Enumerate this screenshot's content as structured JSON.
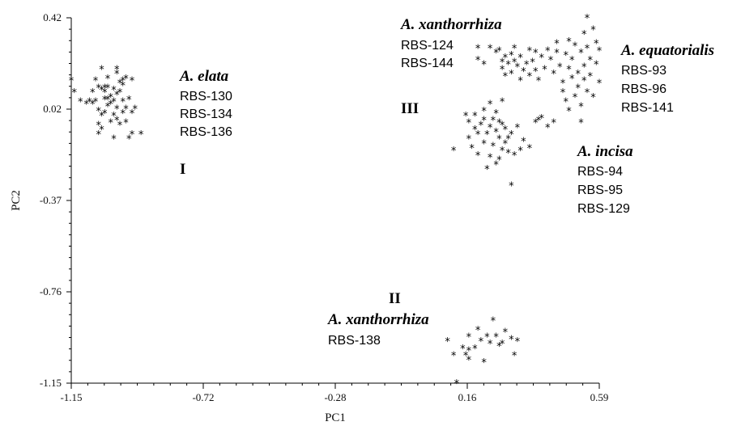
{
  "chart_data": {
    "type": "scatter",
    "xlabel": "PC1",
    "ylabel": "PC2",
    "xlim": [
      -1.15,
      0.59
    ],
    "ylim": [
      -1.15,
      0.42
    ],
    "xticks": [
      "-1.15",
      "-0.72",
      "-0.28",
      "0.16",
      "0.59"
    ],
    "yticks": [
      "0.42",
      "0.02",
      "-0.37",
      "-0.76",
      "-1.15"
    ],
    "marker": "asterisk",
    "groups": [
      {
        "label": "I",
        "species": "A. elata",
        "strains": [
          "RBS-130",
          "RBS-134",
          "RBS-136"
        ],
        "points": [
          [
            -1.15,
            0.15
          ],
          [
            -1.14,
            0.1
          ],
          [
            -1.12,
            0.06
          ],
          [
            -1.1,
            0.05
          ],
          [
            -1.09,
            0.06
          ],
          [
            -1.08,
            0.1
          ],
          [
            -1.08,
            0.05
          ],
          [
            -1.07,
            0.15
          ],
          [
            -1.07,
            0.06
          ],
          [
            -1.06,
            0.12
          ],
          [
            -1.06,
            0.02
          ],
          [
            -1.06,
            -0.04
          ],
          [
            -1.06,
            -0.08
          ],
          [
            -1.05,
            0.2
          ],
          [
            -1.05,
            0.11
          ],
          [
            -1.05,
            0.0
          ],
          [
            -1.05,
            -0.06
          ],
          [
            -1.04,
            0.1
          ],
          [
            -1.04,
            0.07
          ],
          [
            -1.04,
            0.01
          ],
          [
            -1.04,
            0.12
          ],
          [
            -1.03,
            0.16
          ],
          [
            -1.03,
            0.07
          ],
          [
            -1.03,
            0.12
          ],
          [
            -1.03,
            0.04
          ],
          [
            -1.02,
            0.08
          ],
          [
            -1.02,
            -0.03
          ],
          [
            -1.02,
            0.05
          ],
          [
            -1.01,
            0.06
          ],
          [
            -1.01,
            0.11
          ],
          [
            -1.01,
            0.0
          ],
          [
            -1.01,
            -0.1
          ],
          [
            -1.0,
            0.2
          ],
          [
            -1.0,
            0.18
          ],
          [
            -1.0,
            0.09
          ],
          [
            -1.0,
            0.03
          ],
          [
            -1.0,
            -0.02
          ],
          [
            -0.99,
            0.1
          ],
          [
            -0.99,
            -0.04
          ],
          [
            -0.99,
            0.14
          ],
          [
            -0.98,
            0.15
          ],
          [
            -0.98,
            0.06
          ],
          [
            -0.98,
            0.13
          ],
          [
            -0.98,
            0.01
          ],
          [
            -0.97,
            0.16
          ],
          [
            -0.97,
            0.03
          ],
          [
            -0.97,
            -0.03
          ],
          [
            -0.96,
            0.07
          ],
          [
            -0.96,
            -0.1
          ],
          [
            -0.95,
            0.15
          ],
          [
            -0.95,
            0.01
          ],
          [
            -0.95,
            -0.08
          ],
          [
            -0.94,
            0.03
          ],
          [
            -0.92,
            -0.08
          ]
        ]
      },
      {
        "label": "II",
        "species": "A. xanthorrhiza",
        "strains": [
          "RBS-138"
        ],
        "points": [
          [
            0.09,
            -0.97
          ],
          [
            0.11,
            -1.03
          ],
          [
            0.12,
            -1.15
          ],
          [
            0.14,
            -1.0
          ],
          [
            0.15,
            -1.03
          ],
          [
            0.16,
            -0.95
          ],
          [
            0.16,
            -1.01
          ],
          [
            0.16,
            -1.05
          ],
          [
            0.18,
            -1.0
          ],
          [
            0.19,
            -0.92
          ],
          [
            0.2,
            -0.97
          ],
          [
            0.21,
            -1.06
          ],
          [
            0.22,
            -0.95
          ],
          [
            0.23,
            -0.98
          ],
          [
            0.24,
            -0.88
          ],
          [
            0.25,
            -0.95
          ],
          [
            0.26,
            -0.99
          ],
          [
            0.27,
            -0.98
          ],
          [
            0.28,
            -0.93
          ],
          [
            0.3,
            -0.96
          ],
          [
            0.31,
            -1.03
          ],
          [
            0.32,
            -0.97
          ]
        ]
      },
      {
        "label": "III",
        "species": "A. incisa",
        "strains": [
          "RBS-94",
          "RBS-95",
          "RBS-129"
        ],
        "points": [
          [
            0.11,
            -0.15
          ],
          [
            0.15,
            0.0
          ],
          [
            0.16,
            -0.03
          ],
          [
            0.16,
            -0.1
          ],
          [
            0.17,
            -0.14
          ],
          [
            0.18,
            0.0
          ],
          [
            0.18,
            -0.06
          ],
          [
            0.19,
            -0.08
          ],
          [
            0.19,
            -0.17
          ],
          [
            0.2,
            -0.04
          ],
          [
            0.21,
            0.02
          ],
          [
            0.21,
            -0.02
          ],
          [
            0.21,
            -0.12
          ],
          [
            0.22,
            -0.08
          ],
          [
            0.22,
            -0.23
          ],
          [
            0.23,
            0.05
          ],
          [
            0.23,
            -0.05
          ],
          [
            0.23,
            -0.18
          ],
          [
            0.24,
            -0.02
          ],
          [
            0.24,
            -0.13
          ],
          [
            0.25,
            0.01
          ],
          [
            0.25,
            -0.07
          ],
          [
            0.25,
            -0.21
          ],
          [
            0.26,
            -0.03
          ],
          [
            0.26,
            -0.1
          ],
          [
            0.26,
            -0.19
          ],
          [
            0.27,
            0.06
          ],
          [
            0.27,
            -0.04
          ],
          [
            0.27,
            -0.15
          ],
          [
            0.28,
            -0.06
          ],
          [
            0.28,
            -0.12
          ],
          [
            0.29,
            -0.1
          ],
          [
            0.29,
            -0.16
          ],
          [
            0.3,
            -0.08
          ],
          [
            0.3,
            -0.3
          ],
          [
            0.31,
            -0.17
          ],
          [
            0.32,
            -0.05
          ],
          [
            0.33,
            -0.15
          ],
          [
            0.34,
            -0.11
          ],
          [
            0.36,
            -0.14
          ],
          [
            0.38,
            -0.03
          ],
          [
            0.39,
            -0.02
          ],
          [
            0.4,
            -0.01
          ],
          [
            0.42,
            -0.05
          ],
          [
            0.44,
            -0.03
          ]
        ]
      },
      {
        "label": "III",
        "species": "A. xanthorrhiza",
        "strains": [
          "RBS-124",
          "RBS-144"
        ],
        "points": [
          [
            0.19,
            0.29
          ],
          [
            0.19,
            0.24
          ],
          [
            0.21,
            0.22
          ],
          [
            0.23,
            0.29
          ],
          [
            0.25,
            0.27
          ],
          [
            0.26,
            0.28
          ],
          [
            0.27,
            0.23
          ],
          [
            0.27,
            0.2
          ],
          [
            0.28,
            0.25
          ],
          [
            0.28,
            0.17
          ],
          [
            0.29,
            0.22
          ],
          [
            0.3,
            0.26
          ],
          [
            0.3,
            0.18
          ],
          [
            0.31,
            0.23
          ],
          [
            0.31,
            0.29
          ],
          [
            0.32,
            0.21
          ],
          [
            0.33,
            0.25
          ],
          [
            0.33,
            0.15
          ],
          [
            0.34,
            0.19
          ],
          [
            0.35,
            0.22
          ],
          [
            0.36,
            0.28
          ],
          [
            0.36,
            0.17
          ],
          [
            0.37,
            0.23
          ],
          [
            0.38,
            0.27
          ],
          [
            0.38,
            0.19
          ],
          [
            0.39,
            0.15
          ]
        ]
      },
      {
        "label": "III",
        "species": "A. equatorialis",
        "strains": [
          "RBS-93",
          "RBS-96",
          "RBS-141"
        ],
        "points": [
          [
            0.4,
            0.25
          ],
          [
            0.41,
            0.2
          ],
          [
            0.42,
            0.28
          ],
          [
            0.43,
            0.24
          ],
          [
            0.44,
            0.18
          ],
          [
            0.45,
            0.27
          ],
          [
            0.45,
            0.31
          ],
          [
            0.46,
            0.21
          ],
          [
            0.47,
            0.14
          ],
          [
            0.47,
            0.1
          ],
          [
            0.48,
            0.26
          ],
          [
            0.48,
            0.06
          ],
          [
            0.49,
            0.32
          ],
          [
            0.49,
            0.2
          ],
          [
            0.49,
            0.02
          ],
          [
            0.5,
            0.16
          ],
          [
            0.5,
            0.24
          ],
          [
            0.51,
            0.08
          ],
          [
            0.51,
            0.3
          ],
          [
            0.52,
            0.18
          ],
          [
            0.52,
            0.12
          ],
          [
            0.53,
            0.27
          ],
          [
            0.53,
            0.04
          ],
          [
            0.53,
            -0.03
          ],
          [
            0.54,
            0.35
          ],
          [
            0.54,
            0.21
          ],
          [
            0.54,
            0.15
          ],
          [
            0.55,
            0.42
          ],
          [
            0.55,
            0.29
          ],
          [
            0.55,
            0.1
          ],
          [
            0.56,
            0.24
          ],
          [
            0.56,
            0.17
          ],
          [
            0.57,
            0.37
          ],
          [
            0.57,
            0.08
          ],
          [
            0.58,
            0.31
          ],
          [
            0.58,
            0.22
          ],
          [
            0.59,
            0.28
          ],
          [
            0.59,
            0.14
          ]
        ]
      }
    ],
    "group_labels": [
      "I",
      "II",
      "III"
    ]
  }
}
